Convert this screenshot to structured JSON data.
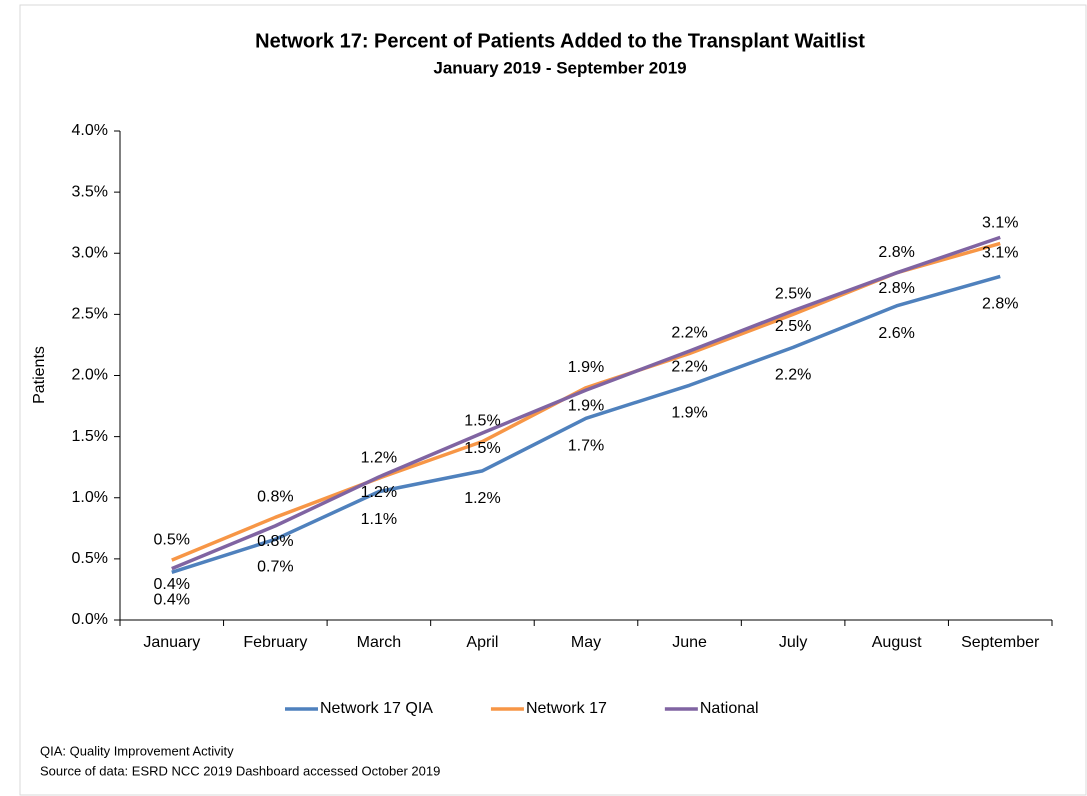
{
  "chart_data": {
    "type": "line",
    "title": "Network 17: Percent of Patients Added to the Transplant Waitlist",
    "subtitle": "January 2019 - September 2019",
    "y_label": "Patients",
    "categories": [
      "January",
      "February",
      "March",
      "April",
      "May",
      "June",
      "July",
      "August",
      "September"
    ],
    "series": [
      {
        "name": "Network 17 QIA",
        "color": "#4f81bd",
        "label_color": "#595959",
        "values": [
          0.39,
          0.66,
          1.05,
          1.22,
          1.65,
          1.92,
          2.23,
          2.57,
          2.81
        ],
        "value_labels": [
          "0.4%",
          "0.7%",
          "1.1%",
          "1.2%",
          "1.7%",
          "1.9%",
          "2.2%",
          "2.6%",
          "2.8%"
        ]
      },
      {
        "name": "Network 17",
        "color": "#f79646",
        "label_color": "#000000",
        "values": [
          0.49,
          0.84,
          1.16,
          1.46,
          1.9,
          2.18,
          2.5,
          2.84,
          3.08
        ],
        "value_labels": [
          "0.5%",
          "0.8%",
          "1.2%",
          "1.5%",
          "1.9%",
          "2.2%",
          "2.5%",
          "2.8%",
          "3.1%"
        ]
      },
      {
        "name": "National",
        "color": "#8064a2",
        "label_color": "#000000",
        "values": [
          0.42,
          0.77,
          1.17,
          1.53,
          1.88,
          2.2,
          2.53,
          2.84,
          3.13
        ],
        "value_labels": [
          "0.4%",
          "0.8%",
          "1.2%",
          "1.5%",
          "1.9%",
          "2.2%",
          "2.5%",
          "2.8%",
          "3.1%"
        ]
      }
    ],
    "ylim": [
      0,
      4
    ],
    "yticks": [
      {
        "value": 0,
        "label": "0.0%"
      },
      {
        "value": 0.5,
        "label": "0.5%"
      },
      {
        "value": 1,
        "label": "1.0%"
      },
      {
        "value": 1.5,
        "label": "1.5%"
      },
      {
        "value": 2,
        "label": "2.0%"
      },
      {
        "value": 2.5,
        "label": "2.5%"
      },
      {
        "value": 3,
        "label": "3.0%"
      },
      {
        "value": 3.5,
        "label": "3.5%"
      },
      {
        "value": 4,
        "label": "4.0%"
      }
    ],
    "grid": false,
    "legend": "bottom",
    "footnotes": [
      "QIA:  Quality Improvement Activity",
      "Source of data:  ESRD NCC 2019 Dashboard accessed October 2019"
    ]
  }
}
